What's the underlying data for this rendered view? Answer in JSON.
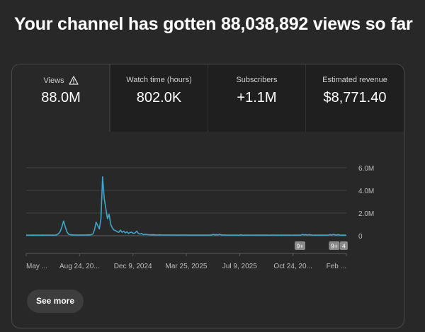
{
  "headline": "Your channel has gotten 88,038,892 views so far",
  "metrics": [
    {
      "label": "Views",
      "value": "88.0M",
      "icon": "warning-icon",
      "active": true
    },
    {
      "label": "Watch time (hours)",
      "value": "802.0K",
      "active": false
    },
    {
      "label": "Subscribers",
      "value": "+1.1M",
      "active": false
    },
    {
      "label": "Estimated revenue",
      "value": "$8,771.40",
      "active": false
    }
  ],
  "chart_data": {
    "type": "line",
    "series": [
      {
        "name": "",
        "values": [
          0.05,
          0.05,
          0.05,
          0.05,
          0.06,
          0.05,
          0.05,
          0.06,
          0.05,
          0.05,
          0.06,
          0.05,
          0.05,
          0.06,
          0.06,
          0.05,
          0.06,
          0.05,
          0.06,
          0.1,
          0.2,
          0.4,
          0.8,
          1.3,
          0.8,
          0.35,
          0.15,
          0.1,
          0.08,
          0.07,
          0.07,
          0.06,
          0.06,
          0.07,
          0.06,
          0.07,
          0.06,
          0.07,
          0.08,
          0.07,
          0.1,
          0.15,
          0.5,
          1.2,
          0.9,
          0.6,
          1.5,
          5.2,
          3.3,
          2.4,
          1.5,
          1.9,
          1.0,
          0.7,
          0.5,
          0.45,
          0.35,
          0.3,
          0.5,
          0.3,
          0.4,
          0.25,
          0.35,
          0.2,
          0.3,
          0.3,
          0.2,
          0.25,
          0.4,
          0.2,
          0.15,
          0.2,
          0.1,
          0.12,
          0.12,
          0.1,
          0.09,
          0.08,
          0.09,
          0.08,
          0.07,
          0.07,
          0.08,
          0.07,
          0.07,
          0.06,
          0.07,
          0.06,
          0.07,
          0.06,
          0.06,
          0.07,
          0.06,
          0.06,
          0.06,
          0.07,
          0.06,
          0.06,
          0.07,
          0.06,
          0.06,
          0.06,
          0.06,
          0.06,
          0.05,
          0.06,
          0.06,
          0.06,
          0.05,
          0.06,
          0.06,
          0.06,
          0.06,
          0.06,
          0.06,
          0.12,
          0.08,
          0.1,
          0.08,
          0.12,
          0.08,
          0.06,
          0.07,
          0.06,
          0.05,
          0.06,
          0.06,
          0.05,
          0.06,
          0.05,
          0.06,
          0.05,
          0.08,
          0.06,
          0.05,
          0.06,
          0.05,
          0.06,
          0.06,
          0.05,
          0.05,
          0.06,
          0.06,
          0.05,
          0.06,
          0.06,
          0.05,
          0.06,
          0.06,
          0.05,
          0.05,
          0.06,
          0.06,
          0.06,
          0.05,
          0.06,
          0.05,
          0.06,
          0.05,
          0.06,
          0.05,
          0.06,
          0.06,
          0.05,
          0.05,
          0.06,
          0.05,
          0.06,
          0.06,
          0.05,
          0.12,
          0.08,
          0.1,
          0.06,
          0.1,
          0.08,
          0.06,
          0.05,
          0.06,
          0.05,
          0.06,
          0.05,
          0.06,
          0.06,
          0.05,
          0.05,
          0.06,
          0.1,
          0.06,
          0.12,
          0.08,
          0.06,
          0.1,
          0.06,
          0.05,
          0.06,
          0.05,
          0.05
        ]
      }
    ],
    "x_tick_labels": [
      "May ...",
      "Aug 24, 20...",
      "Dec 9, 2024",
      "Mar 25, 2025",
      "Jul 9, 2025",
      "Oct 24, 20...",
      "Feb ..."
    ],
    "y_tick_labels": [
      "0",
      "2.0M",
      "4.0M",
      "6.0M"
    ],
    "y_ticks": [
      0,
      2,
      4,
      6
    ],
    "ylim": [
      0,
      6
    ],
    "grid": true,
    "line_color": "#3ea6c9",
    "badges": [
      {
        "label": "9+",
        "at_fraction": 0.855
      },
      {
        "label": "9+",
        "at_fraction": 0.962
      },
      {
        "label": "4",
        "at_fraction": 0.992
      }
    ]
  },
  "see_more_label": "See more"
}
